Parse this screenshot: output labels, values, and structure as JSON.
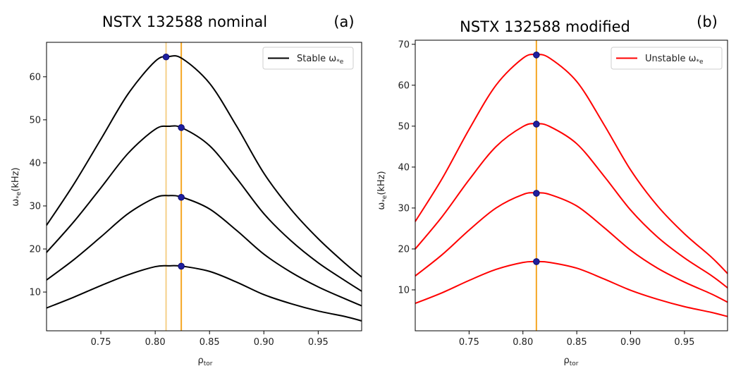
{
  "chart_data": [
    {
      "type": "line",
      "panel_label": "(a)",
      "title": "NSTX 132588 nominal",
      "xlabel": "ρ",
      "xlabel_sub": "tor",
      "ylabel": "ω",
      "ylabel_sub": "*e",
      "ylabel_unit": "(kHz)",
      "xlim": [
        0.7,
        0.99
      ],
      "ylim": [
        1,
        68
      ],
      "xticks": [
        0.75,
        0.8,
        0.85,
        0.9,
        0.95
      ],
      "xtick_labels": [
        "0.75",
        "0.80",
        "0.85",
        "0.90",
        "0.95"
      ],
      "yticks": [
        10,
        20,
        30,
        40,
        50,
        60
      ],
      "ytick_labels": [
        "10",
        "20",
        "30",
        "40",
        "50",
        "60"
      ],
      "legend": {
        "label": "Stable ω",
        "label_sub": "*e",
        "color": "#000000",
        "position": "top-right"
      },
      "line_color": "#000000",
      "vlines": [
        {
          "x": 0.81,
          "color": "#f5d08a"
        },
        {
          "x": 0.824,
          "color": "#f5a623"
        }
      ],
      "x": [
        0.7,
        0.725,
        0.75,
        0.775,
        0.8,
        0.8125,
        0.825,
        0.85,
        0.875,
        0.9,
        0.925,
        0.95,
        0.975,
        0.99
      ],
      "series": [
        {
          "name": "curve-1",
          "values": [
            6.3,
            8.8,
            11.5,
            14.0,
            15.9,
            16.1,
            16.0,
            14.8,
            12.3,
            9.4,
            7.3,
            5.6,
            4.3,
            3.3
          ],
          "peak": [
            0.824,
            16
          ]
        },
        {
          "name": "curve-2",
          "values": [
            12.8,
            17.5,
            22.8,
            28.2,
            31.9,
            32.4,
            32.0,
            29.3,
            24.3,
            18.8,
            14.6,
            11.2,
            8.4,
            6.8
          ],
          "peak": [
            0.824,
            32
          ]
        },
        {
          "name": "curve-3",
          "values": [
            19.2,
            26.3,
            34.2,
            42.2,
            47.8,
            48.5,
            48.1,
            44.0,
            36.4,
            28.2,
            21.9,
            16.8,
            12.6,
            10.2
          ],
          "peak": [
            0.824,
            48.2
          ]
        },
        {
          "name": "curve-4",
          "values": [
            25.5,
            35.0,
            45.5,
            56.0,
            63.6,
            64.7,
            64.2,
            58.5,
            48.5,
            37.6,
            29.2,
            22.4,
            16.6,
            13.5
          ],
          "peak": [
            0.81,
            64.6
          ]
        }
      ]
    },
    {
      "type": "line",
      "panel_label": "(b)",
      "title": "NSTX 132588 modified",
      "xlabel": "ρ",
      "xlabel_sub": "tor",
      "ylabel": "ω",
      "ylabel_sub": "*e",
      "ylabel_unit": "(kHz)",
      "xlim": [
        0.7,
        0.99
      ],
      "ylim": [
        0,
        71
      ],
      "xticks": [
        0.75,
        0.8,
        0.85,
        0.9,
        0.95
      ],
      "xtick_labels": [
        "0.75",
        "0.80",
        "0.85",
        "0.90",
        "0.95"
      ],
      "yticks": [
        10,
        20,
        30,
        40,
        50,
        60,
        70
      ],
      "ytick_labels": [
        "10",
        "20",
        "30",
        "40",
        "50",
        "60",
        "70"
      ],
      "legend": {
        "label": "Unstable ω",
        "label_sub": "*e",
        "color": "#ff0000",
        "position": "top-right"
      },
      "line_color": "#ff0000",
      "vlines": [
        {
          "x": 0.8125,
          "color": "#f5a623"
        }
      ],
      "x": [
        0.7,
        0.725,
        0.75,
        0.775,
        0.8,
        0.8125,
        0.825,
        0.85,
        0.875,
        0.9,
        0.925,
        0.95,
        0.975,
        0.99
      ],
      "series": [
        {
          "name": "curve-1",
          "values": [
            6.7,
            9.3,
            12.3,
            15.0,
            16.7,
            16.9,
            16.7,
            15.3,
            12.7,
            9.9,
            7.7,
            5.9,
            4.5,
            3.5
          ],
          "peak": [
            0.8125,
            16.9
          ]
        },
        {
          "name": "curve-2",
          "values": [
            13.4,
            18.6,
            24.6,
            30.0,
            33.3,
            33.7,
            33.3,
            30.5,
            25.3,
            19.7,
            15.3,
            11.9,
            9.0,
            7.0
          ],
          "peak": [
            0.8125,
            33.6
          ]
        },
        {
          "name": "curve-3",
          "values": [
            20.0,
            27.9,
            36.9,
            45.0,
            49.9,
            50.6,
            49.9,
            45.7,
            37.9,
            29.5,
            22.9,
            17.8,
            13.5,
            10.5
          ],
          "peak": [
            0.8125,
            50.5
          ]
        },
        {
          "name": "curve-4",
          "values": [
            26.7,
            37.2,
            49.2,
            60.0,
            66.6,
            67.5,
            66.6,
            60.9,
            50.5,
            39.3,
            30.5,
            23.7,
            18.0,
            14.0
          ],
          "peak": [
            0.8125,
            67.4
          ]
        }
      ]
    }
  ]
}
